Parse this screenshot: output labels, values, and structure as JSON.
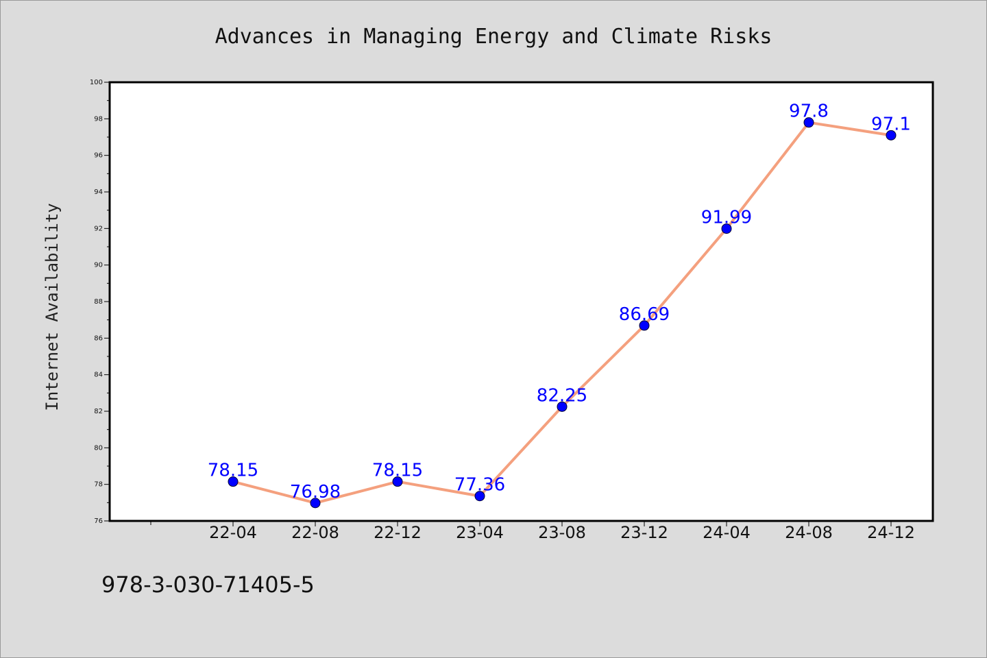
{
  "chart_data": {
    "type": "line",
    "title": "Advances in Managing Energy and Climate Risks",
    "xlabel": "",
    "ylabel": "Internet Availability",
    "categories": [
      "22-04",
      "22-08",
      "22-12",
      "23-04",
      "23-08",
      "23-12",
      "24-04",
      "24-08",
      "24-12"
    ],
    "series": [
      {
        "values": [
          78.15,
          76.98,
          78.15,
          77.36,
          82.25,
          86.69,
          91.99,
          97.8,
          97.1
        ],
        "labels": [
          "78.15",
          "76.98",
          "78.15",
          "77.36",
          "82.25",
          "86.69",
          "91.99",
          "97.8",
          "97.1"
        ]
      }
    ],
    "ylim": [
      76,
      100
    ],
    "yticks": [
      "76",
      "78",
      "80",
      "82",
      "84",
      "86",
      "88",
      "90",
      "92",
      "94",
      "96",
      "98",
      "100"
    ],
    "grid": false,
    "colors": {
      "line": "#f4a07e",
      "marker": "#0000ff",
      "label": "#0000ff",
      "background": "#dcdcdc",
      "plot_area": "#ffffff"
    }
  },
  "footer": {
    "text": "978-3-030-71405-5"
  }
}
